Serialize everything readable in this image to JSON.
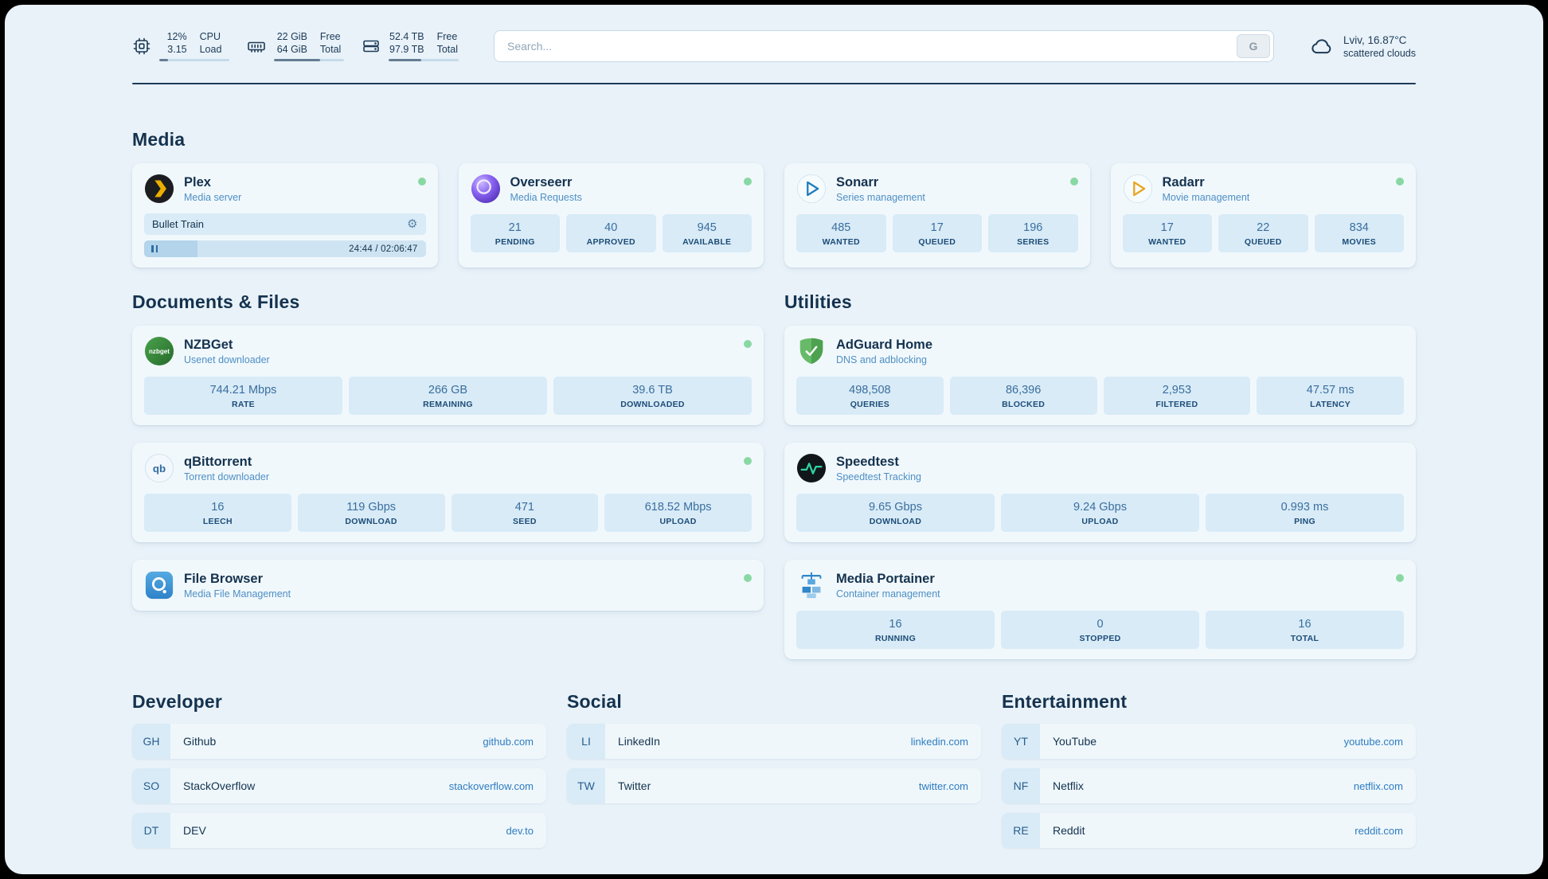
{
  "icons": {
    "gear": "⚙"
  },
  "topbar": {
    "cpu": {
      "value_top": "12%",
      "value_bottom": "3.15",
      "label_top": "CPU",
      "label_bottom": "Load",
      "progress": 12
    },
    "memory": {
      "value_top": "22 GiB",
      "value_bottom": "64 GiB",
      "label_top": "Free",
      "label_bottom": "Total",
      "progress": 66
    },
    "disk": {
      "value_top": "52.4 TB",
      "value_bottom": "97.9 TB",
      "label_top": "Free",
      "label_bottom": "Total",
      "progress": 47
    },
    "search": {
      "placeholder": "Search...",
      "provider_label": "G"
    },
    "weather": {
      "location": "Lviv, 16.87°C",
      "condition": "scattered clouds"
    }
  },
  "media": {
    "title": "Media",
    "plex": {
      "name": "Plex",
      "desc": "Media server",
      "now_playing": "Bullet Train",
      "time": "24:44 / 02:06:47",
      "progress": 19
    },
    "overseerr": {
      "name": "Overseerr",
      "desc": "Media Requests",
      "stats": [
        {
          "value": "21",
          "label": "PENDING"
        },
        {
          "value": "40",
          "label": "APPROVED"
        },
        {
          "value": "945",
          "label": "AVAILABLE"
        }
      ]
    },
    "sonarr": {
      "name": "Sonarr",
      "desc": "Series management",
      "stats": [
        {
          "value": "485",
          "label": "WANTED"
        },
        {
          "value": "17",
          "label": "QUEUED"
        },
        {
          "value": "196",
          "label": "SERIES"
        }
      ]
    },
    "radarr": {
      "name": "Radarr",
      "desc": "Movie management",
      "stats": [
        {
          "value": "17",
          "label": "WANTED"
        },
        {
          "value": "22",
          "label": "QUEUED"
        },
        {
          "value": "834",
          "label": "MOVIES"
        }
      ]
    }
  },
  "documents": {
    "title": "Documents & Files",
    "nzbget": {
      "name": "NZBGet",
      "desc": "Usenet downloader",
      "stats": [
        {
          "value": "744.21 Mbps",
          "label": "RATE"
        },
        {
          "value": "266 GB",
          "label": "REMAINING"
        },
        {
          "value": "39.6 TB",
          "label": "DOWNLOADED"
        }
      ]
    },
    "qbittorrent": {
      "name": "qBittorrent",
      "desc": "Torrent downloader",
      "stats": [
        {
          "value": "16",
          "label": "LEECH"
        },
        {
          "value": "119 Gbps",
          "label": "DOWNLOAD"
        },
        {
          "value": "471",
          "label": "SEED"
        },
        {
          "value": "618.52 Mbps",
          "label": "UPLOAD"
        }
      ]
    },
    "filebrowser": {
      "name": "File Browser",
      "desc": "Media File Management"
    }
  },
  "utilities": {
    "title": "Utilities",
    "adguard": {
      "name": "AdGuard Home",
      "desc": "DNS and adblocking",
      "stats": [
        {
          "value": "498,508",
          "label": "QUERIES"
        },
        {
          "value": "86,396",
          "label": "BLOCKED"
        },
        {
          "value": "2,953",
          "label": "FILTERED"
        },
        {
          "value": "47.57 ms",
          "label": "LATENCY"
        }
      ]
    },
    "speedtest": {
      "name": "Speedtest",
      "desc": "Speedtest Tracking",
      "stats": [
        {
          "value": "9.65 Gbps",
          "label": "DOWNLOAD"
        },
        {
          "value": "9.24 Gbps",
          "label": "UPLOAD"
        },
        {
          "value": "0.993 ms",
          "label": "PING"
        }
      ]
    },
    "portainer": {
      "name": "Media Portainer",
      "desc": "Container management",
      "stats": [
        {
          "value": "16",
          "label": "RUNNING"
        },
        {
          "value": "0",
          "label": "STOPPED"
        },
        {
          "value": "16",
          "label": "TOTAL"
        }
      ]
    }
  },
  "bookmarks": {
    "developer": {
      "title": "Developer",
      "items": [
        {
          "abbr": "GH",
          "name": "Github",
          "url": "github.com"
        },
        {
          "abbr": "SO",
          "name": "StackOverflow",
          "url": "stackoverflow.com"
        },
        {
          "abbr": "DT",
          "name": "DEV",
          "url": "dev.to"
        }
      ]
    },
    "social": {
      "title": "Social",
      "items": [
        {
          "abbr": "LI",
          "name": "LinkedIn",
          "url": "linkedin.com"
        },
        {
          "abbr": "TW",
          "name": "Twitter",
          "url": "twitter.com"
        }
      ]
    },
    "entertainment": {
      "title": "Entertainment",
      "items": [
        {
          "abbr": "YT",
          "name": "YouTube",
          "url": "youtube.com"
        },
        {
          "abbr": "NF",
          "name": "Netflix",
          "url": "netflix.com"
        },
        {
          "abbr": "RE",
          "name": "Reddit",
          "url": "reddit.com"
        }
      ]
    }
  }
}
